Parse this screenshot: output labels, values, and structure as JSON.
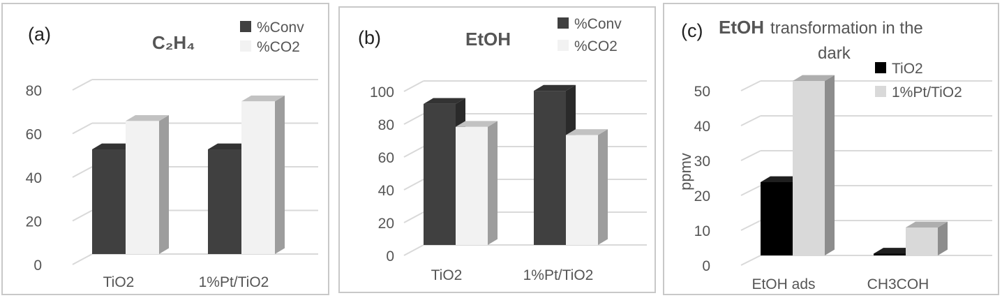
{
  "chart_data": [
    {
      "type": "bar",
      "panel_label": "(a)",
      "title": "C₂H₄",
      "categories": [
        "TiO2",
        "1%Pt/TiO2"
      ],
      "series": [
        {
          "name": "%Conv",
          "values": [
            48,
            48
          ],
          "color": "#404040"
        },
        {
          "name": "%CO2",
          "values": [
            61,
            70
          ],
          "color": "#f2f2f2"
        }
      ],
      "ylim": [
        0,
        80
      ],
      "yticks": [
        "0",
        "20",
        "40",
        "60",
        "80"
      ],
      "xlabel": "",
      "ylabel": "",
      "grid": true,
      "three_d": true,
      "legend": "top-right"
    },
    {
      "type": "bar",
      "panel_label": "(b)",
      "title": "EtOH",
      "categories": [
        "TiO2",
        "1%Pt/TiO2"
      ],
      "series": [
        {
          "name": "%Conv",
          "values": [
            86,
            94
          ],
          "color": "#404040"
        },
        {
          "name": "%CO2",
          "values": [
            72,
            67
          ],
          "color": "#f2f2f2"
        }
      ],
      "ylim": [
        0,
        100
      ],
      "yticks": [
        "0",
        "20",
        "40",
        "60",
        "80",
        "100"
      ],
      "xlabel": "",
      "ylabel": "",
      "grid": true,
      "three_d": true,
      "legend": "top-right"
    },
    {
      "type": "bar",
      "panel_label": "(c)",
      "title_bold": "EtOH",
      "title_rest_line1": "transformation in the",
      "title_rest_line2": "dark",
      "categories": [
        "EtOH ads",
        "CH3COH"
      ],
      "series": [
        {
          "name": "TiO2",
          "values": [
            21,
            0.5
          ],
          "color": "#000000"
        },
        {
          "name": "1%Pt/TiO2",
          "values": [
            50,
            8
          ],
          "color": "#d9d9d9"
        }
      ],
      "ylim": [
        0,
        50
      ],
      "yticks": [
        "0",
        "10",
        "20",
        "30",
        "40",
        "50"
      ],
      "xlabel": "",
      "ylabel": "ppmv",
      "grid": true,
      "three_d": true,
      "legend": "top-right"
    }
  ]
}
